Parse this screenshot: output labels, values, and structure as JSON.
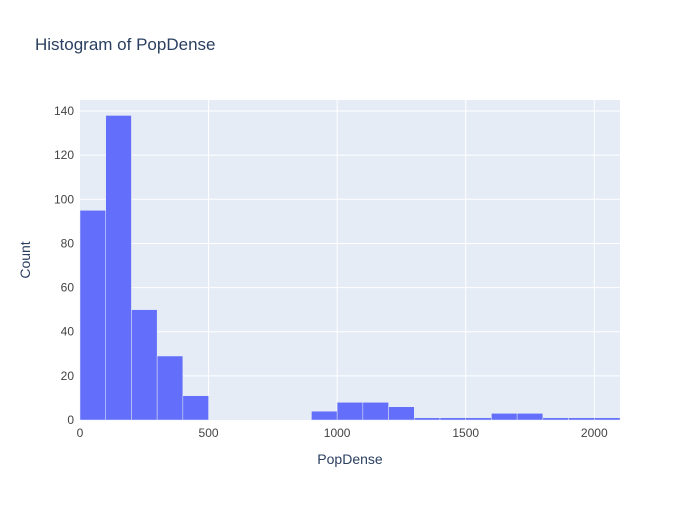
{
  "chart_data": {
    "type": "bar",
    "title": "Histogram of PopDense",
    "xlabel": "PopDense",
    "ylabel": "Count",
    "xlim": [
      0,
      2100
    ],
    "ylim": [
      0,
      145
    ],
    "bin_width": 100,
    "bins": [
      {
        "x0": 0,
        "x1": 100,
        "count": 95
      },
      {
        "x0": 100,
        "x1": 200,
        "count": 138
      },
      {
        "x0": 200,
        "x1": 300,
        "count": 50
      },
      {
        "x0": 300,
        "x1": 400,
        "count": 29
      },
      {
        "x0": 400,
        "x1": 500,
        "count": 11
      },
      {
        "x0": 900,
        "x1": 1000,
        "count": 4
      },
      {
        "x0": 1000,
        "x1": 1100,
        "count": 8
      },
      {
        "x0": 1100,
        "x1": 1200,
        "count": 8
      },
      {
        "x0": 1200,
        "x1": 1300,
        "count": 6
      },
      {
        "x0": 1300,
        "x1": 1400,
        "count": 1
      },
      {
        "x0": 1400,
        "x1": 1500,
        "count": 1
      },
      {
        "x0": 1500,
        "x1": 1600,
        "count": 1
      },
      {
        "x0": 1600,
        "x1": 1700,
        "count": 3
      },
      {
        "x0": 1700,
        "x1": 1800,
        "count": 3
      },
      {
        "x0": 1800,
        "x1": 1900,
        "count": 1
      },
      {
        "x0": 1900,
        "x1": 2000,
        "count": 1
      },
      {
        "x0": 2000,
        "x1": 2100,
        "count": 1
      }
    ],
    "x_ticks": [
      0,
      500,
      1000,
      1500,
      2000
    ],
    "y_ticks": [
      0,
      20,
      40,
      60,
      80,
      100,
      120,
      140
    ],
    "grid": true,
    "colors": {
      "bar": "#636efa",
      "plot_bg": "#e5ecf6",
      "grid": "#ffffff",
      "text": "#2a3f5f",
      "tick_text": "#444444"
    }
  }
}
